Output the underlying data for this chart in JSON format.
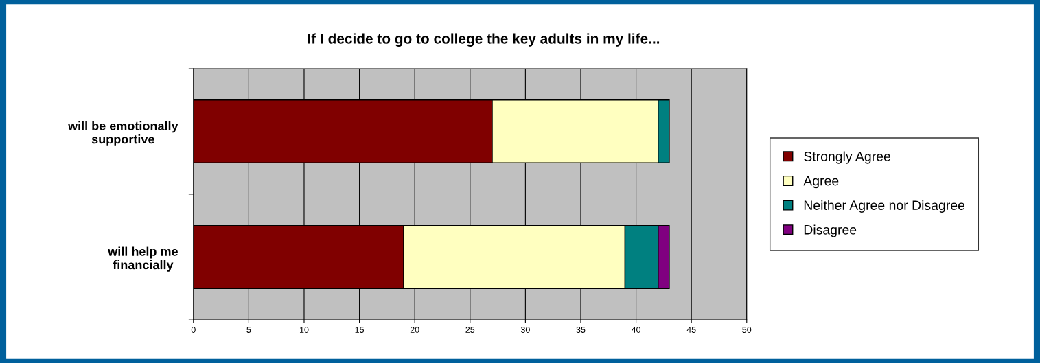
{
  "chart_data": {
    "type": "bar",
    "orientation": "horizontal",
    "stacked": true,
    "title": "If I decide to go to college the key adults in my life...",
    "categories": [
      "will be emotionally\nsupportive",
      "will help me\nfinancially"
    ],
    "series": [
      {
        "name": "Strongly Agree",
        "color": "#800000",
        "values": [
          27,
          19
        ]
      },
      {
        "name": "Agree",
        "color": "#ffffc0",
        "values": [
          15,
          20
        ]
      },
      {
        "name": "Neither Agree nor Disagree",
        "color": "#008080",
        "values": [
          1,
          3
        ]
      },
      {
        "name": "Disagree",
        "color": "#800080",
        "values": [
          null,
          1
        ]
      }
    ],
    "xlim": [
      0,
      50
    ],
    "xticks": [
      0,
      5,
      10,
      15,
      20,
      25,
      30,
      35,
      40,
      45,
      50
    ],
    "grid": "x",
    "legend": "right"
  }
}
